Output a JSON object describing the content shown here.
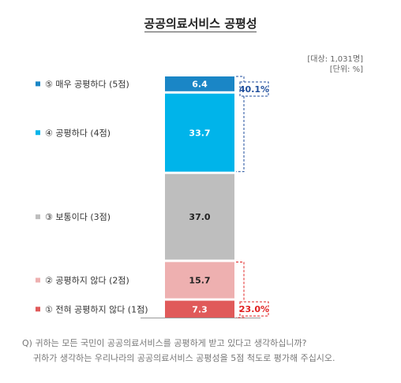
{
  "chart_data": {
    "type": "bar",
    "title": "공공의료서비스 공평성",
    "base": "[대상: 1,031명]",
    "unit": "[단위: %]",
    "categories": [
      "⑤ 매우 공평하다 (5점)",
      "④ 공평하다 (4점)",
      "③ 보통이다 (3점)",
      "② 공평하지 않다 (2점)",
      "① 전혀 공평하지 않다 (1점)"
    ],
    "series": [
      {
        "values": [
          6.4,
          33.7,
          37.0,
          15.7,
          7.3
        ]
      }
    ],
    "value_labels": [
      "6.4",
      "33.7",
      "37.0",
      "15.7",
      "7.3"
    ],
    "colors": [
      "#1a86c6",
      "#00b4ea",
      "#bebebe",
      "#eeb0b0",
      "#e05a5a"
    ],
    "label_colors": [
      "#ffffff",
      "#ffffff",
      "#222222",
      "#222222",
      "#ffffff"
    ],
    "annotations": [
      {
        "text": "40.1%",
        "value": 40.1,
        "range": [
          0,
          1
        ],
        "color": "#1f4e9c"
      },
      {
        "text": "23.0%",
        "value": 23.0,
        "range": [
          3,
          4
        ],
        "color": "#e02020"
      }
    ],
    "stacked": true,
    "legend": "left"
  },
  "question": {
    "line1": "Q) 귀하는 모든 국민이 공공의료서비스를 공평하게 받고 있다고 생각하십니까?",
    "line2": "귀하가 생각하는 우리나라의 공공의료서비스 공평성을 5점 척도로 평가해 주십시오."
  }
}
